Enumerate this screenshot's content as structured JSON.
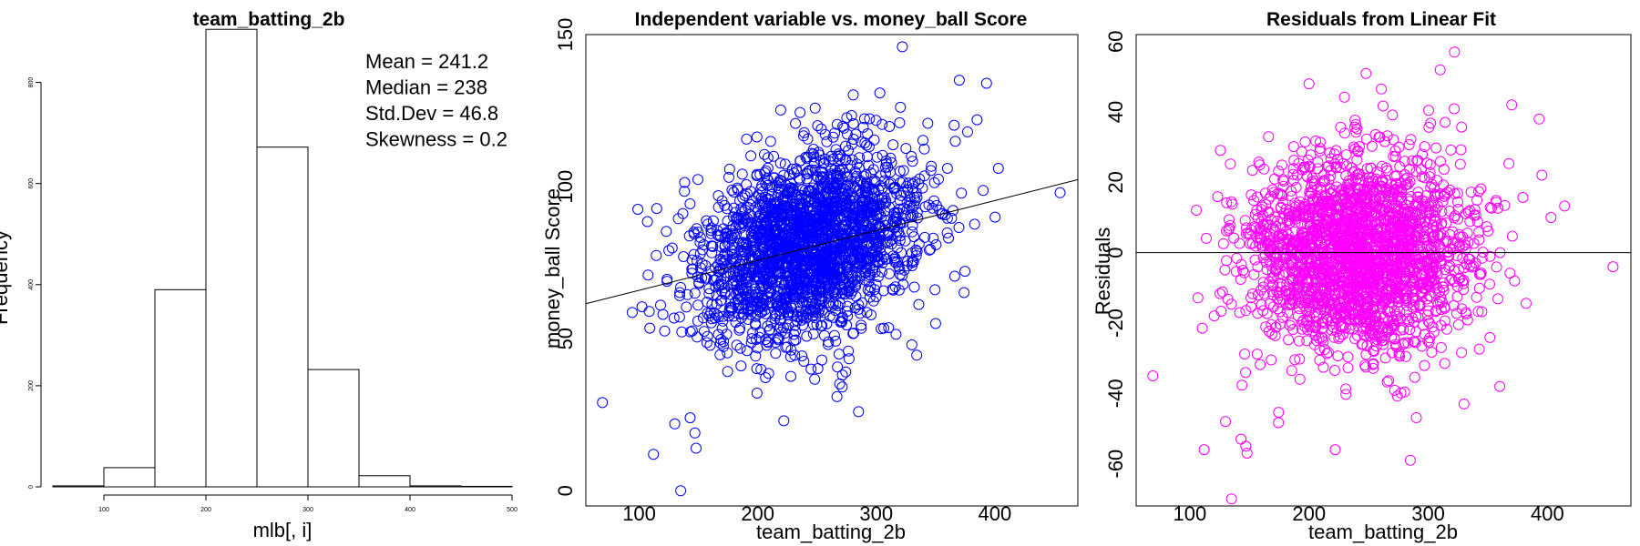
{
  "chart_data": [
    {
      "type": "histogram",
      "title": "team_batting_2b",
      "xlabel": "mlb[, i]",
      "ylabel": "Frequency",
      "xlim": [
        50,
        500
      ],
      "ylim": [
        0,
        900
      ],
      "x_ticks": [
        100,
        200,
        300,
        400,
        500
      ],
      "y_ticks": [
        0,
        200,
        400,
        600,
        800
      ],
      "bins": [
        {
          "from": 50,
          "to": 100,
          "count": 2
        },
        {
          "from": 100,
          "to": 150,
          "count": 38
        },
        {
          "from": 150,
          "to": 200,
          "count": 390
        },
        {
          "from": 200,
          "to": 250,
          "count": 905
        },
        {
          "from": 250,
          "to": 300,
          "count": 672
        },
        {
          "from": 300,
          "to": 350,
          "count": 232
        },
        {
          "from": 350,
          "to": 400,
          "count": 22
        },
        {
          "from": 400,
          "to": 450,
          "count": 2
        },
        {
          "from": 450,
          "to": 500,
          "count": 1
        }
      ],
      "annotations": [
        "Mean = 241.2",
        "Median = 238",
        "Std.Dev = 46.8",
        "Skewness = 0.2"
      ]
    },
    {
      "type": "scatter",
      "title": "Independent variable vs. money_ball Score",
      "xlabel": "team_batting_2b",
      "ylabel": "money_ball Score",
      "xlim": [
        55,
        470
      ],
      "ylim": [
        -5,
        150
      ],
      "x_ticks": [
        100,
        200,
        300,
        400
      ],
      "y_ticks": [
        0,
        50,
        100,
        150
      ],
      "point_color": "#0000ff",
      "n_points": 2276,
      "x_center": 241,
      "x_sd": 46,
      "y_center": 80.8,
      "y_sd": 15,
      "fit_line": {
        "x": [
          55,
          470
        ],
        "y": [
          61.5,
          102.3
        ]
      },
      "outliers": [
        [
          69,
          29
        ],
        [
          112,
          12
        ],
        [
          130,
          22
        ],
        [
          135,
          0
        ],
        [
          143,
          24
        ],
        [
          148,
          14
        ],
        [
          147,
          19
        ],
        [
          118,
          61
        ],
        [
          125,
          79
        ],
        [
          120,
          58
        ],
        [
          222,
          23
        ],
        [
          285,
          26
        ],
        [
          455,
          98
        ],
        [
          322,
          146
        ],
        [
          370,
          135
        ],
        [
          393,
          134
        ],
        [
          403,
          106
        ],
        [
          385,
          122
        ],
        [
          377,
          118
        ],
        [
          330,
          48
        ],
        [
          350,
          55
        ],
        [
          360,
          106
        ],
        [
          280,
          78
        ],
        [
          245,
          40
        ]
      ]
    },
    {
      "type": "scatter",
      "title": "Residuals from Linear Fit",
      "xlabel": "team_batting_2b",
      "ylabel": "Residuals",
      "xlim": [
        55,
        470
      ],
      "ylim": [
        -72,
        62
      ],
      "x_ticks": [
        100,
        200,
        300,
        400
      ],
      "y_ticks": [
        -60,
        -40,
        -20,
        0,
        20,
        40,
        60
      ],
      "point_color": "#ff00ff",
      "n_points": 2276,
      "x_center": 241,
      "x_sd": 46,
      "y_center": 0,
      "y_sd": 14,
      "hline": 0,
      "outliers": [
        [
          69,
          -35
        ],
        [
          112,
          -56
        ],
        [
          130,
          -48
        ],
        [
          135,
          -70
        ],
        [
          143,
          -53
        ],
        [
          148,
          -57
        ],
        [
          147,
          -55
        ],
        [
          222,
          -56
        ],
        [
          285,
          -59
        ],
        [
          455,
          -4
        ],
        [
          322,
          57
        ],
        [
          370,
          42
        ],
        [
          393,
          38
        ],
        [
          403,
          10
        ],
        [
          360,
          -38
        ],
        [
          200,
          48
        ],
        [
          330,
          -43
        ],
        [
          310,
          52
        ]
      ]
    }
  ]
}
